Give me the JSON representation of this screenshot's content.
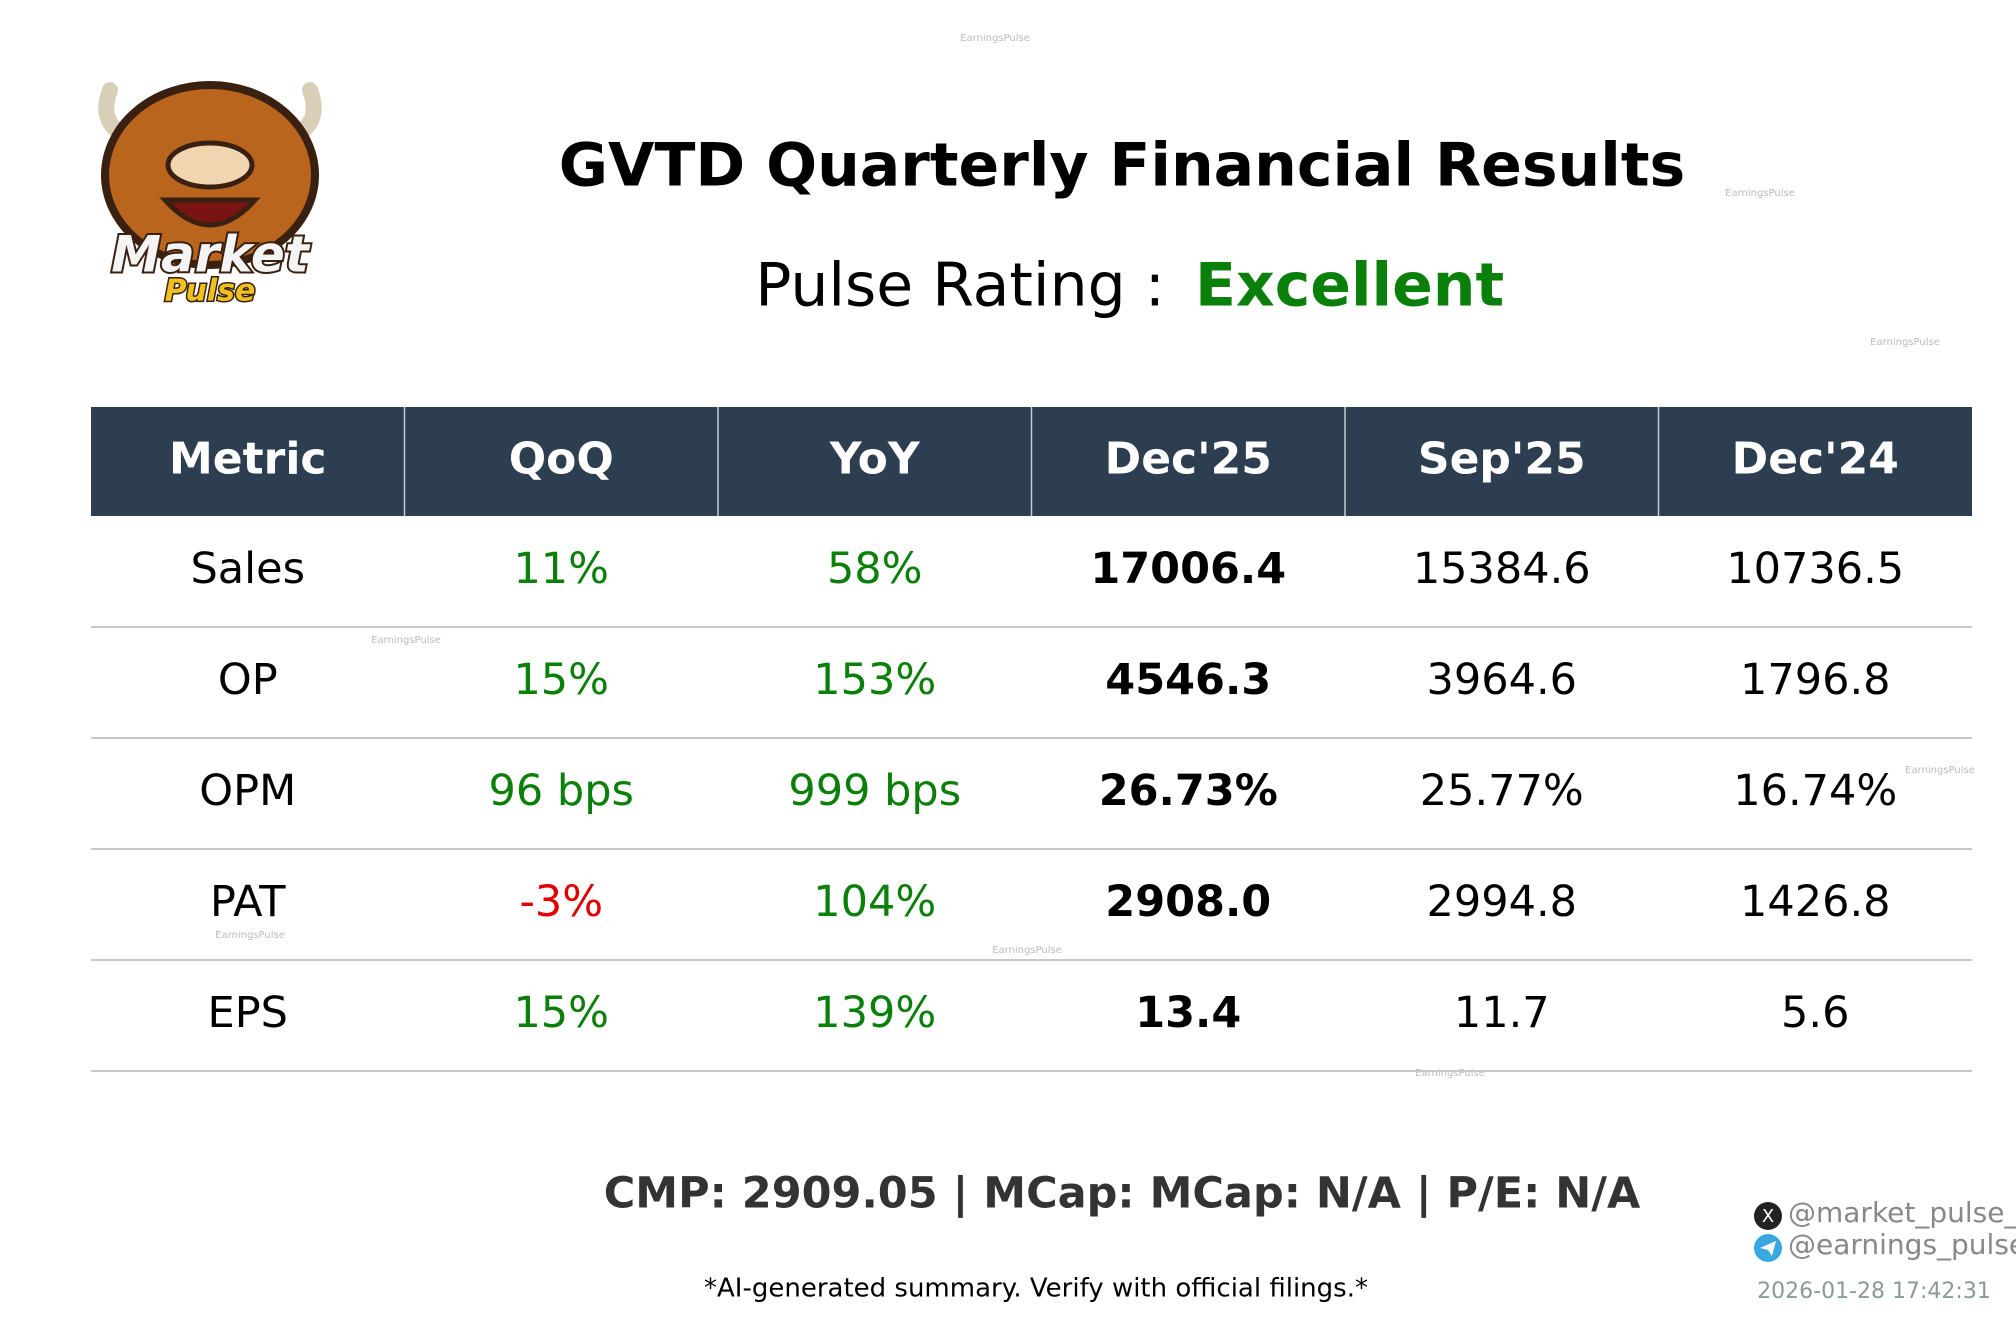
{
  "header": {
    "title": "GVTD Quarterly Financial Results",
    "rating_label": "Pulse Rating :",
    "rating_value": "Excellent"
  },
  "logo": {
    "line1": "Market",
    "line2": "Pulse"
  },
  "table": {
    "columns": [
      "Metric",
      "QoQ",
      "YoY",
      "Dec'25",
      "Sep'25",
      "Dec'24"
    ],
    "rows": [
      [
        "Sales",
        "11%",
        "58%",
        "17006.4",
        "15384.6",
        "10736.5"
      ],
      [
        "OP",
        "15%",
        "153%",
        "4546.3",
        "3964.6",
        "1796.8"
      ],
      [
        "OPM",
        "96 bps",
        "999 bps",
        "26.73%",
        "25.77%",
        "16.74%"
      ],
      [
        "PAT",
        "-3%",
        "104%",
        "2908.0",
        "2994.8",
        "1426.8"
      ],
      [
        "EPS",
        "15%",
        "139%",
        "13.4",
        "11.7",
        "5.6"
      ]
    ]
  },
  "footer": {
    "summary": "CMP: 2909.05 | MCap: MCap: N/A | P/E: N/A",
    "disclaimer": "*AI-generated summary. Verify with official filings.*",
    "social": [
      "@market_pulse_ai",
      "@earnings_pulse"
    ],
    "timestamp": "2026-01-28 17:42:31"
  },
  "watermark": "EarningsPulse"
}
